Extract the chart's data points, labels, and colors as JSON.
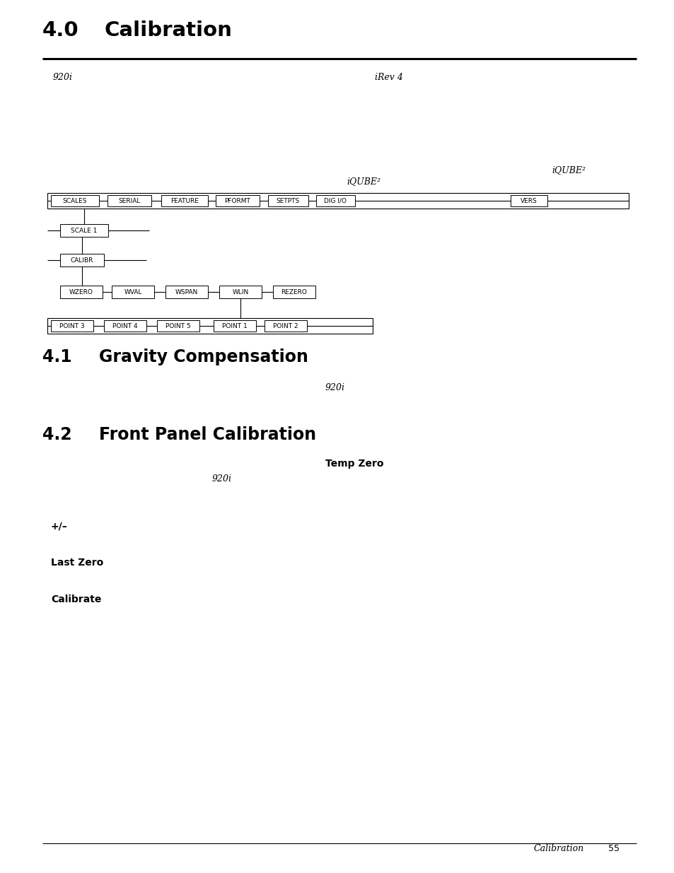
{
  "title_num": "4.0",
  "title_text": "Calibration",
  "section41_num": "4.1",
  "section41_text": "Gravity Compensation",
  "section42_num": "4.2",
  "section42_text": "Front Panel Calibration",
  "header_920i": "920i",
  "header_irev4": "iRev 4",
  "iqube2_label_right": "iQUBE²",
  "iqube2_label_center": "iQUBE²",
  "menu_row1": [
    "SCALES",
    "SERIAL",
    "FEATURE",
    "PFORMT",
    "SETPTS",
    "DIG I/O",
    "VERS"
  ],
  "menu_row4": [
    "WZERO",
    "WVAL",
    "WSPAN",
    "WLIN",
    "REZERO"
  ],
  "menu_row5": [
    "POINT 3",
    "POINT 4",
    "POINT 5",
    "POINT 1",
    "POINT 2"
  ],
  "section41_920i": "920i",
  "section42_tempzero": "Temp Zero",
  "section42_920i": "920i",
  "bullet1": "+/–",
  "bullet2": "Last Zero",
  "bullet3": "Calibrate",
  "footer_text": "Calibration",
  "footer_page": "55",
  "bg_color": "#ffffff",
  "text_color": "#000000"
}
